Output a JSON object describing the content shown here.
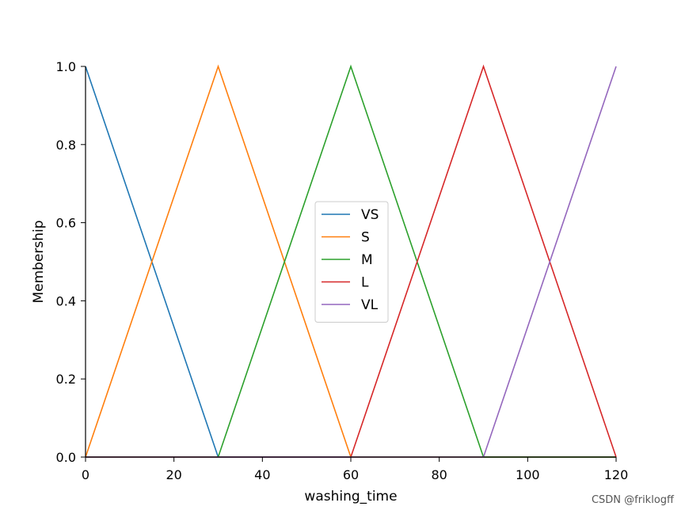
{
  "chart_data": {
    "type": "line",
    "xlabel": "washing_time",
    "ylabel": "Membership",
    "xlim": [
      0,
      120
    ],
    "ylim": [
      0,
      1.0
    ],
    "xticks": [
      0,
      20,
      40,
      60,
      80,
      100,
      120
    ],
    "xtick_labels": [
      "0",
      "20",
      "40",
      "60",
      "80",
      "100",
      "120"
    ],
    "yticks": [
      0.0,
      0.2,
      0.4,
      0.6,
      0.8,
      1.0
    ],
    "ytick_labels": [
      "0.0",
      "0.2",
      "0.4",
      "0.6",
      "0.8",
      "1.0"
    ],
    "grid": false,
    "legend_position": "center",
    "series": [
      {
        "name": "VS",
        "color": "#1f77b4",
        "x": [
          0,
          30,
          120
        ],
        "y": [
          1,
          0,
          0
        ]
      },
      {
        "name": "S",
        "color": "#ff7f0e",
        "x": [
          0,
          30,
          60,
          120
        ],
        "y": [
          0,
          1,
          0,
          0
        ]
      },
      {
        "name": "M",
        "color": "#2ca02c",
        "x": [
          0,
          30,
          60,
          90,
          120
        ],
        "y": [
          0,
          0,
          1,
          0,
          0
        ]
      },
      {
        "name": "L",
        "color": "#d62728",
        "x": [
          0,
          60,
          90,
          120
        ],
        "y": [
          0,
          0,
          1,
          0
        ]
      },
      {
        "name": "VL",
        "color": "#9467bd",
        "x": [
          0,
          90,
          120
        ],
        "y": [
          0,
          0,
          1
        ]
      }
    ]
  },
  "watermark": "CSDN @friklogff"
}
